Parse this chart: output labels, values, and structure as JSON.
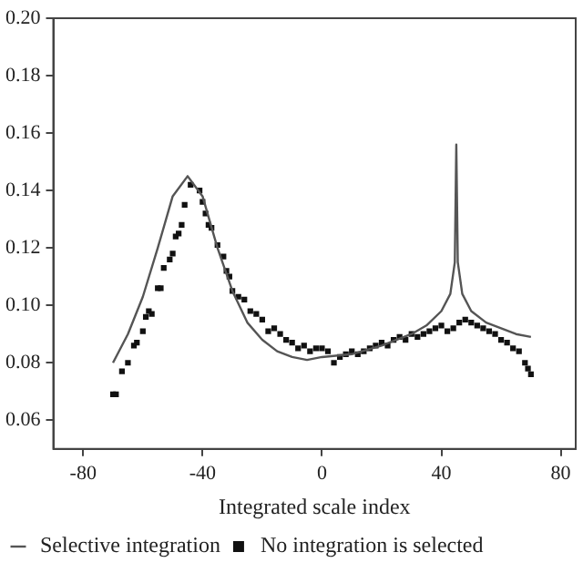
{
  "chart_data": {
    "type": "line",
    "xlabel": "Integrated scale index",
    "xlim": [
      -90,
      85
    ],
    "xticks": [
      -80,
      -40,
      0,
      40,
      80
    ],
    "ylim": [
      0.05,
      0.2
    ],
    "yticks": [
      0.06,
      0.08,
      {
        "value": 0.1,
        "label": "0.10"
      },
      0.12,
      0.14,
      0.16,
      0.18,
      {
        "value": 0.2,
        "label": "0.20"
      }
    ],
    "grid": false,
    "legend": "bottom",
    "series": [
      {
        "name": "Selective integration",
        "marker": "none",
        "color": "#555555",
        "x": [
          -70,
          -65,
          -60,
          -55,
          -50,
          -45,
          -40,
          -35,
          -30,
          -25,
          -20,
          -15,
          -10,
          -5,
          0,
          10,
          20,
          30,
          35,
          40,
          43,
          44.5,
          45,
          45.5,
          47,
          50,
          55,
          60,
          65,
          70
        ],
        "values": [
          0.08,
          0.09,
          0.103,
          0.12,
          0.138,
          0.145,
          0.138,
          0.12,
          0.105,
          0.094,
          0.088,
          0.084,
          0.082,
          0.081,
          0.082,
          0.083,
          0.086,
          0.09,
          0.093,
          0.098,
          0.104,
          0.115,
          0.156,
          0.115,
          0.104,
          0.098,
          0.094,
          0.092,
          0.09,
          0.089
        ]
      },
      {
        "name": "No integration is selected",
        "type": "scatter",
        "marker": "square",
        "color": "#111111",
        "x": [
          -70,
          -69,
          -67,
          -65,
          -63,
          -62,
          -60,
          -59,
          -58,
          -57,
          -55,
          -54,
          -53,
          -51,
          -50,
          -49,
          -48,
          -47,
          -46,
          -44,
          -41,
          -40,
          -39,
          -38,
          -37,
          -35,
          -33,
          -32,
          -31,
          -30,
          -28,
          -26,
          -24,
          -22,
          -20,
          -18,
          -16,
          -14,
          -12,
          -10,
          -8,
          -6,
          -4,
          -2,
          0,
          2,
          4,
          6,
          8,
          10,
          12,
          14,
          16,
          18,
          20,
          22,
          24,
          26,
          28,
          30,
          32,
          34,
          36,
          38,
          40,
          42,
          44,
          46,
          48,
          50,
          52,
          54,
          56,
          58,
          60,
          62,
          64,
          66,
          68,
          69,
          70
        ],
        "values": [
          0.069,
          0.069,
          0.077,
          0.08,
          0.086,
          0.087,
          0.091,
          0.096,
          0.098,
          0.097,
          0.106,
          0.106,
          0.113,
          0.116,
          0.118,
          0.124,
          0.125,
          0.128,
          0.135,
          0.142,
          0.14,
          0.136,
          0.132,
          0.128,
          0.127,
          0.121,
          0.117,
          0.112,
          0.11,
          0.105,
          0.103,
          0.102,
          0.098,
          0.097,
          0.095,
          0.091,
          0.092,
          0.09,
          0.088,
          0.087,
          0.085,
          0.086,
          0.084,
          0.085,
          0.085,
          0.084,
          0.08,
          0.082,
          0.083,
          0.084,
          0.083,
          0.084,
          0.085,
          0.086,
          0.087,
          0.086,
          0.088,
          0.089,
          0.088,
          0.09,
          0.089,
          0.09,
          0.091,
          0.092,
          0.093,
          0.091,
          0.092,
          0.094,
          0.095,
          0.094,
          0.093,
          0.092,
          0.091,
          0.09,
          0.088,
          0.087,
          0.085,
          0.084,
          0.08,
          0.078,
          0.076
        ]
      }
    ]
  }
}
